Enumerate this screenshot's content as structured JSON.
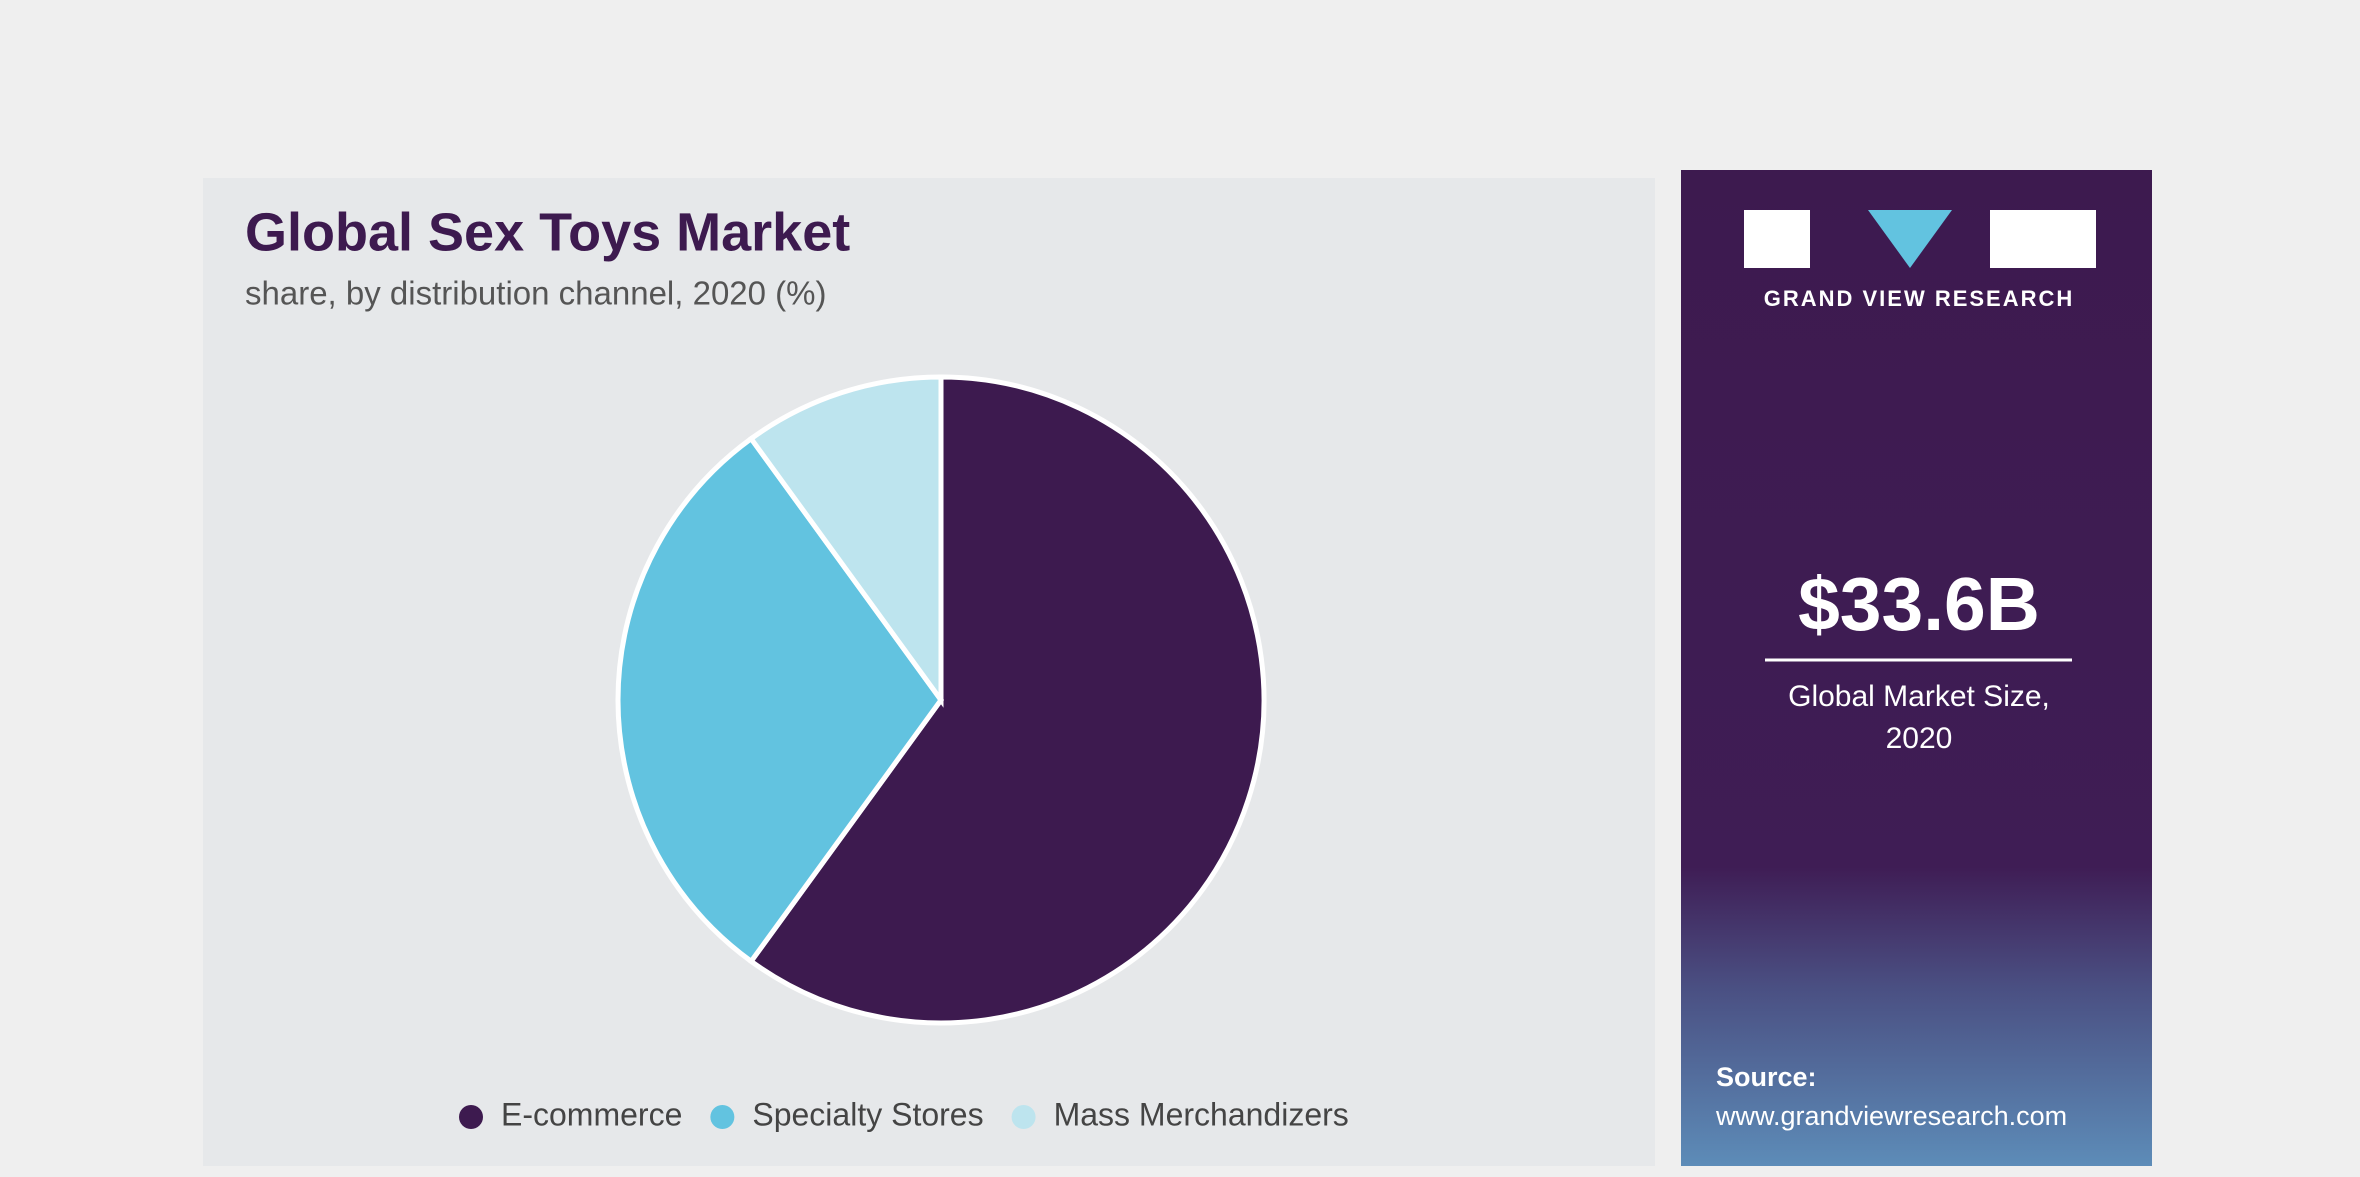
{
  "chart_data": {
    "type": "pie",
    "title": "Global Sex Toys Market",
    "subtitle": "share, by distribution channel, 2020 (%)",
    "categories": [
      "E-commerce",
      "Specialty Stores",
      "Mass Merchandizers"
    ],
    "values": [
      60,
      30,
      10
    ],
    "colors": [
      "#3d1a4f",
      "#62c3e0",
      "#bde4ee"
    ]
  },
  "sidebar": {
    "brand": "GRAND VIEW RESEARCH",
    "market_size": "$33.6B",
    "market_size_caption": [
      "Global Market Size,",
      "2020"
    ],
    "source_label": "Source:",
    "source_url": "www.grandviewresearch.com"
  }
}
